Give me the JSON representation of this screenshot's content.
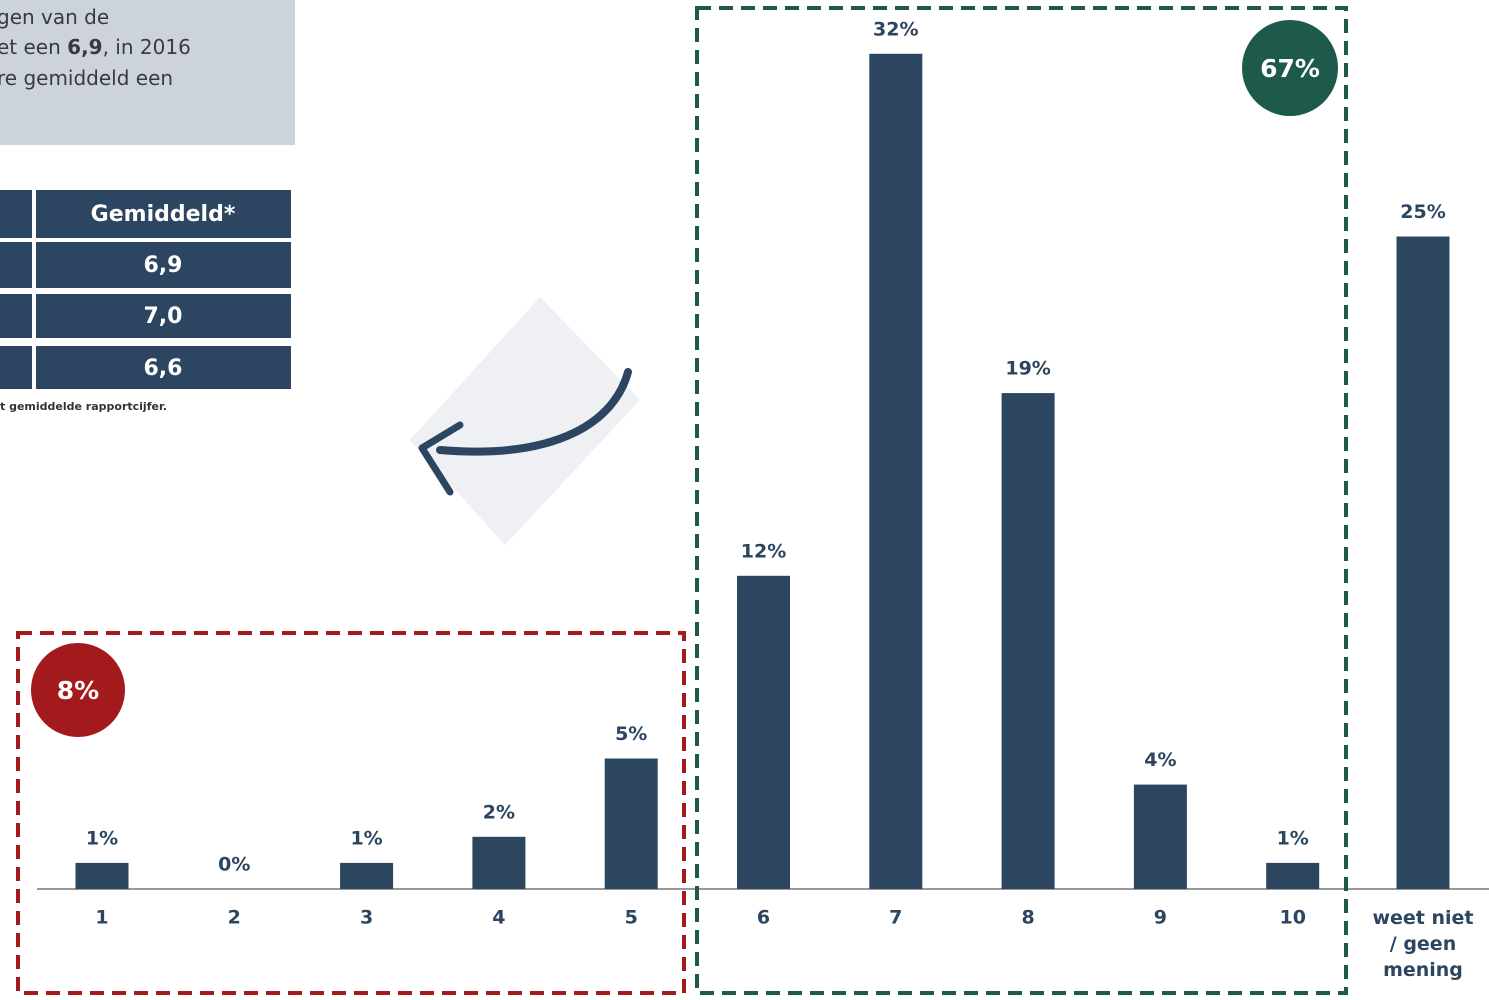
{
  "intro": {
    "lines": [
      [
        "gen van de"
      ],
      [
        "et een ",
        "6,9",
        ", in 2016"
      ],
      [
        "re gemiddeld een"
      ]
    ]
  },
  "table": {
    "header": "Gemiddeld*",
    "rows": [
      "6,9",
      "7,0",
      "6,6"
    ],
    "footnote": "t gemiddelde rapportcijfer."
  },
  "chart_data": {
    "type": "bar",
    "categories": [
      "1",
      "2",
      "3",
      "4",
      "5",
      "6",
      "7",
      "8",
      "9",
      "10",
      "weet niet / geen mening"
    ],
    "values": [
      1,
      0,
      1,
      2,
      5,
      12,
      32,
      19,
      4,
      1,
      25
    ],
    "value_labels": [
      "1%",
      "0%",
      "1%",
      "2%",
      "5%",
      "12%",
      "32%",
      "19%",
      "4%",
      "1%",
      "25%"
    ],
    "color": "#2c4660",
    "groups": [
      {
        "label": "8%",
        "color": "#a31a1d"
      },
      {
        "label": "67%",
        "color": "#1e5a4c"
      }
    ]
  }
}
